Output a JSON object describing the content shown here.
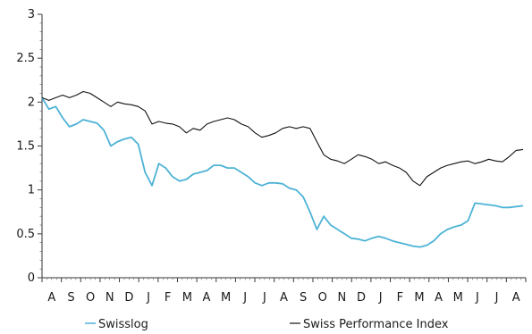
{
  "chart_data": {
    "type": "line",
    "title": "",
    "xlabel": "",
    "ylabel": "",
    "ylim": [
      0,
      3
    ],
    "y_ticks": [
      0,
      0.5,
      1,
      1.5,
      2,
      2.5,
      3
    ],
    "y_tick_labels": [
      "0",
      "0.5",
      "1",
      "1.5",
      "2",
      "2.5",
      "3"
    ],
    "x_tick_labels": [
      "A",
      "S",
      "O",
      "N",
      "D",
      "J",
      "F",
      "M",
      "A",
      "M",
      "J",
      "J",
      "A",
      "S",
      "O",
      "N",
      "D",
      "J",
      "F",
      "M",
      "A",
      "M",
      "J",
      "J",
      "A"
    ],
    "grid": false,
    "legend_position": "bottom",
    "series": [
      {
        "name": "Swisslog",
        "color": "#4db3d6",
        "values": [
          2.05,
          1.92,
          1.95,
          1.82,
          1.72,
          1.75,
          1.8,
          1.78,
          1.76,
          1.68,
          1.5,
          1.55,
          1.58,
          1.6,
          1.52,
          1.2,
          1.05,
          1.3,
          1.25,
          1.15,
          1.1,
          1.12,
          1.18,
          1.2,
          1.22,
          1.28,
          1.28,
          1.25,
          1.25,
          1.2,
          1.15,
          1.08,
          1.05,
          1.08,
          1.08,
          1.07,
          1.02,
          1.0,
          0.92,
          0.75,
          0.55,
          0.7,
          0.6,
          0.55,
          0.5,
          0.45,
          0.44,
          0.42,
          0.45,
          0.47,
          0.45,
          0.42,
          0.4,
          0.38,
          0.36,
          0.35,
          0.37,
          0.42,
          0.5,
          0.55,
          0.58,
          0.6,
          0.65,
          0.85,
          0.84,
          0.83,
          0.82,
          0.8,
          0.8,
          0.81,
          0.82
        ]
      },
      {
        "name": "Swiss Performance Index",
        "color": "#111111",
        "values": [
          2.05,
          2.02,
          2.05,
          2.08,
          2.05,
          2.08,
          2.12,
          2.1,
          2.05,
          2.0,
          1.95,
          2.0,
          1.98,
          1.97,
          1.95,
          1.9,
          1.75,
          1.78,
          1.76,
          1.75,
          1.72,
          1.65,
          1.7,
          1.68,
          1.75,
          1.78,
          1.8,
          1.82,
          1.8,
          1.75,
          1.72,
          1.65,
          1.6,
          1.62,
          1.65,
          1.7,
          1.72,
          1.7,
          1.72,
          1.7,
          1.55,
          1.4,
          1.35,
          1.33,
          1.3,
          1.35,
          1.4,
          1.38,
          1.35,
          1.3,
          1.32,
          1.28,
          1.25,
          1.2,
          1.1,
          1.05,
          1.15,
          1.2,
          1.25,
          1.28,
          1.3,
          1.32,
          1.33,
          1.3,
          1.32,
          1.35,
          1.33,
          1.32,
          1.38,
          1.45,
          1.46
        ]
      }
    ]
  },
  "legend": [
    {
      "label": "Swisslog",
      "color": "#4db3d6"
    },
    {
      "label": "Swiss Performance Index",
      "color": "#111111"
    }
  ]
}
